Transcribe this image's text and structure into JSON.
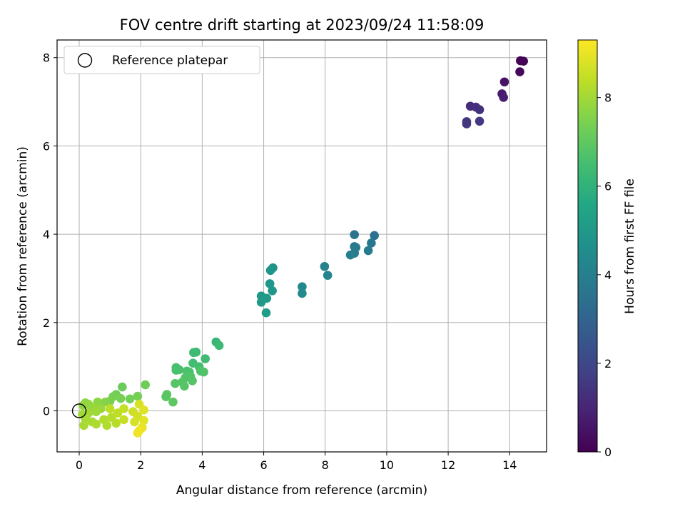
{
  "chart_data": {
    "type": "scatter",
    "title": "FOV centre drift starting at 2023/09/24 11:58:09",
    "xlabel": "Angular distance from reference (arcmin)",
    "ylabel": "Rotation from reference (arcmin)",
    "colorbar_label": "Hours from first FF file",
    "colormap": "viridis",
    "xlim": [
      -0.72,
      15.2
    ],
    "ylim": [
      -0.93,
      8.4
    ],
    "clim": [
      0,
      9.3
    ],
    "xticks": [
      0,
      2,
      4,
      6,
      8,
      10,
      12,
      14
    ],
    "yticks": [
      0,
      2,
      4,
      6,
      8
    ],
    "colorbar_ticks": [
      0,
      2,
      4,
      6,
      8
    ],
    "grid": true,
    "legend": {
      "location": "top-left",
      "entries": [
        "Reference platepar"
      ]
    },
    "reference": {
      "x": 0,
      "y": 0,
      "label": "Reference platepar",
      "marker": "open-circle"
    },
    "series": [
      {
        "points": [
          {
            "x": 14.35,
            "y": 7.93,
            "h": 0.05
          },
          {
            "x": 14.45,
            "y": 7.92,
            "h": 0.1
          },
          {
            "x": 14.33,
            "y": 7.68,
            "h": 0.2
          },
          {
            "x": 13.83,
            "y": 7.45,
            "h": 0.5
          },
          {
            "x": 13.75,
            "y": 7.18,
            "h": 0.7
          },
          {
            "x": 13.8,
            "y": 7.1,
            "h": 0.8
          },
          {
            "x": 12.72,
            "y": 6.9,
            "h": 1.2
          },
          {
            "x": 12.9,
            "y": 6.88,
            "h": 1.3
          },
          {
            "x": 13.02,
            "y": 6.82,
            "h": 1.35
          },
          {
            "x": 12.6,
            "y": 6.55,
            "h": 1.45
          },
          {
            "x": 12.6,
            "y": 6.5,
            "h": 1.5
          },
          {
            "x": 13.02,
            "y": 6.56,
            "h": 1.55
          },
          {
            "x": 9.6,
            "y": 3.97,
            "h": 3.5
          },
          {
            "x": 8.95,
            "y": 3.99,
            "h": 3.6
          },
          {
            "x": 9.5,
            "y": 3.8,
            "h": 3.7
          },
          {
            "x": 8.95,
            "y": 3.72,
            "h": 3.75
          },
          {
            "x": 9.0,
            "y": 3.7,
            "h": 3.8
          },
          {
            "x": 9.4,
            "y": 3.63,
            "h": 3.85
          },
          {
            "x": 8.95,
            "y": 3.57,
            "h": 3.9
          },
          {
            "x": 8.82,
            "y": 3.53,
            "h": 3.95
          },
          {
            "x": 7.98,
            "y": 3.27,
            "h": 4.1
          },
          {
            "x": 8.08,
            "y": 3.07,
            "h": 4.2
          },
          {
            "x": 7.25,
            "y": 2.81,
            "h": 4.35
          },
          {
            "x": 7.25,
            "y": 2.66,
            "h": 4.4
          },
          {
            "x": 6.3,
            "y": 3.24,
            "h": 4.8
          },
          {
            "x": 6.22,
            "y": 3.18,
            "h": 4.85
          },
          {
            "x": 6.2,
            "y": 2.88,
            "h": 4.9
          },
          {
            "x": 6.28,
            "y": 2.72,
            "h": 4.95
          },
          {
            "x": 5.92,
            "y": 2.6,
            "h": 5.0
          },
          {
            "x": 6.1,
            "y": 2.55,
            "h": 5.05
          },
          {
            "x": 5.92,
            "y": 2.46,
            "h": 5.1
          },
          {
            "x": 6.08,
            "y": 2.22,
            "h": 5.15
          },
          {
            "x": 4.45,
            "y": 1.56,
            "h": 6.2
          },
          {
            "x": 4.55,
            "y": 1.48,
            "h": 6.3
          },
          {
            "x": 3.72,
            "y": 1.32,
            "h": 6.35
          },
          {
            "x": 3.8,
            "y": 1.33,
            "h": 6.35
          },
          {
            "x": 4.1,
            "y": 1.18,
            "h": 6.4
          },
          {
            "x": 3.7,
            "y": 1.08,
            "h": 6.45
          },
          {
            "x": 3.9,
            "y": 1.0,
            "h": 6.5
          },
          {
            "x": 3.15,
            "y": 0.98,
            "h": 6.55
          },
          {
            "x": 3.15,
            "y": 0.92,
            "h": 6.6
          },
          {
            "x": 3.25,
            "y": 0.93,
            "h": 6.6
          },
          {
            "x": 3.5,
            "y": 0.9,
            "h": 6.65
          },
          {
            "x": 3.58,
            "y": 0.88,
            "h": 6.65
          },
          {
            "x": 3.95,
            "y": 0.9,
            "h": 6.7
          },
          {
            "x": 4.05,
            "y": 0.88,
            "h": 6.7
          },
          {
            "x": 3.45,
            "y": 0.75,
            "h": 6.75
          },
          {
            "x": 3.62,
            "y": 0.78,
            "h": 6.75
          },
          {
            "x": 3.68,
            "y": 0.68,
            "h": 6.8
          },
          {
            "x": 3.35,
            "y": 0.65,
            "h": 6.8
          },
          {
            "x": 3.12,
            "y": 0.62,
            "h": 6.85
          },
          {
            "x": 3.42,
            "y": 0.56,
            "h": 6.85
          },
          {
            "x": 2.85,
            "y": 0.37,
            "h": 6.9
          },
          {
            "x": 2.82,
            "y": 0.32,
            "h": 6.9
          },
          {
            "x": 3.05,
            "y": 0.2,
            "h": 6.95
          },
          {
            "x": 1.4,
            "y": 0.54,
            "h": 7.2
          },
          {
            "x": 2.15,
            "y": 0.59,
            "h": 7.25
          },
          {
            "x": 1.2,
            "y": 0.37,
            "h": 7.3
          },
          {
            "x": 1.1,
            "y": 0.32,
            "h": 7.35
          },
          {
            "x": 1.35,
            "y": 0.28,
            "h": 7.4
          },
          {
            "x": 1.65,
            "y": 0.27,
            "h": 7.3
          },
          {
            "x": 1.9,
            "y": 0.33,
            "h": 7.35
          },
          {
            "x": 1.0,
            "y": 0.22,
            "h": 7.45
          },
          {
            "x": 0.85,
            "y": 0.2,
            "h": 7.6
          },
          {
            "x": 0.6,
            "y": 0.2,
            "h": 7.7
          },
          {
            "x": 0.2,
            "y": 0.18,
            "h": 7.75
          },
          {
            "x": 0.12,
            "y": 0.12,
            "h": 7.8
          },
          {
            "x": 0.3,
            "y": 0.15,
            "h": 7.8
          },
          {
            "x": 0.45,
            "y": 0.08,
            "h": 7.85
          },
          {
            "x": 0.7,
            "y": 0.05,
            "h": 7.9
          },
          {
            "x": 0.55,
            "y": -0.02,
            "h": 7.95
          },
          {
            "x": 0.3,
            "y": -0.05,
            "h": 8.0
          },
          {
            "x": 0.1,
            "y": -0.08,
            "h": 8.0
          },
          {
            "x": 0.2,
            "y": -0.18,
            "h": 8.05
          },
          {
            "x": 0.15,
            "y": -0.33,
            "h": 8.1
          },
          {
            "x": 0.42,
            "y": -0.25,
            "h": 8.1
          },
          {
            "x": 0.55,
            "y": -0.3,
            "h": 8.15
          },
          {
            "x": 0.8,
            "y": -0.2,
            "h": 8.2
          },
          {
            "x": 0.9,
            "y": -0.33,
            "h": 8.2
          },
          {
            "x": 1.05,
            "y": -0.15,
            "h": 8.25
          },
          {
            "x": 1.2,
            "y": -0.28,
            "h": 8.3
          },
          {
            "x": 1.0,
            "y": 0.05,
            "h": 8.35
          },
          {
            "x": 1.25,
            "y": -0.05,
            "h": 8.4
          },
          {
            "x": 1.45,
            "y": 0.05,
            "h": 8.45
          },
          {
            "x": 1.45,
            "y": -0.2,
            "h": 8.5
          },
          {
            "x": 1.75,
            "y": -0.02,
            "h": 8.6
          },
          {
            "x": 1.9,
            "y": -0.12,
            "h": 8.65
          },
          {
            "x": 1.8,
            "y": -0.25,
            "h": 8.7
          },
          {
            "x": 1.95,
            "y": 0.15,
            "h": 8.75
          },
          {
            "x": 2.1,
            "y": 0.02,
            "h": 8.85
          },
          {
            "x": 2.1,
            "y": -0.22,
            "h": 8.9
          },
          {
            "x": 2.05,
            "y": -0.38,
            "h": 9.0
          },
          {
            "x": 1.9,
            "y": -0.5,
            "h": 9.05
          },
          {
            "x": 1.95,
            "y": -0.45,
            "h": 9.1
          }
        ]
      }
    ]
  }
}
